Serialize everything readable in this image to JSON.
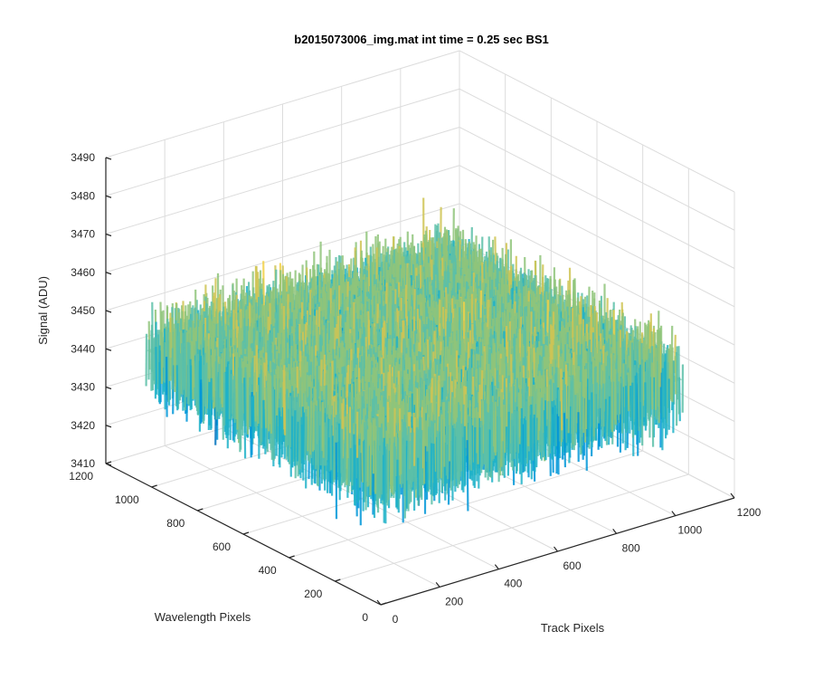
{
  "chart_data": {
    "type": "surface",
    "title": "b2015073006_img.mat int time = 0.25 sec   BS1",
    "xlabel": "Track Pixels",
    "ylabel": "Wavelength Pixels",
    "zlabel": "Signal (ADU)",
    "xlim": [
      0,
      1200
    ],
    "ylim": [
      0,
      1200
    ],
    "zlim": [
      3410,
      3490
    ],
    "xticks": [
      "0",
      "200",
      "400",
      "600",
      "800",
      "1000",
      "1200"
    ],
    "yticks": [
      "0",
      "200",
      "400",
      "600",
      "800",
      "1000",
      "1200"
    ],
    "zticks": [
      "3410",
      "3420",
      "3430",
      "3440",
      "3450",
      "3460",
      "3470",
      "3480",
      "3490"
    ],
    "data_extent": {
      "x": [
        0,
        1024
      ],
      "y": [
        0,
        1024
      ]
    },
    "signal_mean": 3443,
    "signal_band": [
      3420,
      3475
    ],
    "colormap": [
      "#0072bd",
      "#0096d8",
      "#1fb2c8",
      "#5cc0a8",
      "#8fc47a",
      "#cfc453",
      "#f2d046"
    ],
    "grid": true
  }
}
